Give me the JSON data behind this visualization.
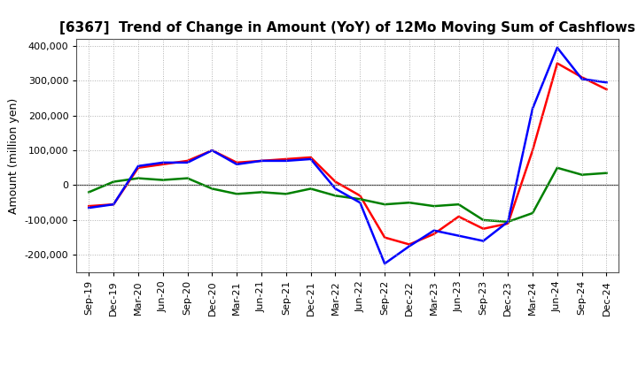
{
  "title": "[6367]  Trend of Change in Amount (YoY) of 12Mo Moving Sum of Cashflows",
  "ylabel": "Amount (million yen)",
  "x_labels": [
    "Sep-19",
    "Dec-19",
    "Mar-20",
    "Jun-20",
    "Sep-20",
    "Dec-20",
    "Mar-21",
    "Jun-21",
    "Sep-21",
    "Dec-21",
    "Mar-22",
    "Jun-22",
    "Sep-22",
    "Dec-22",
    "Mar-23",
    "Jun-23",
    "Sep-23",
    "Dec-23",
    "Mar-24",
    "Jun-24",
    "Sep-24",
    "Dec-24"
  ],
  "operating": [
    -60000,
    -55000,
    50000,
    60000,
    70000,
    100000,
    65000,
    70000,
    75000,
    80000,
    10000,
    -30000,
    -150000,
    -170000,
    -140000,
    -90000,
    -125000,
    -110000,
    100000,
    350000,
    310000,
    275000
  ],
  "investing": [
    -20000,
    10000,
    20000,
    15000,
    20000,
    -10000,
    -25000,
    -20000,
    -25000,
    -10000,
    -30000,
    -40000,
    -55000,
    -50000,
    -60000,
    -55000,
    -100000,
    -105000,
    -80000,
    50000,
    30000,
    35000
  ],
  "free": [
    -65000,
    -55000,
    55000,
    65000,
    65000,
    100000,
    60000,
    70000,
    70000,
    75000,
    -10000,
    -50000,
    -225000,
    -175000,
    -130000,
    -145000,
    -160000,
    -105000,
    220000,
    395000,
    305000,
    295000
  ],
  "ylim": [
    -250000,
    420000
  ],
  "yticks": [
    -200000,
    -100000,
    0,
    100000,
    200000,
    300000,
    400000
  ],
  "operating_color": "#ff0000",
  "investing_color": "#008000",
  "free_color": "#0000ff",
  "background_color": "#ffffff",
  "grid_color": "#b0b0b0",
  "zero_line_color": "#404040",
  "title_fontsize": 11,
  "ylabel_fontsize": 9,
  "tick_fontsize": 8,
  "legend_fontsize": 9
}
